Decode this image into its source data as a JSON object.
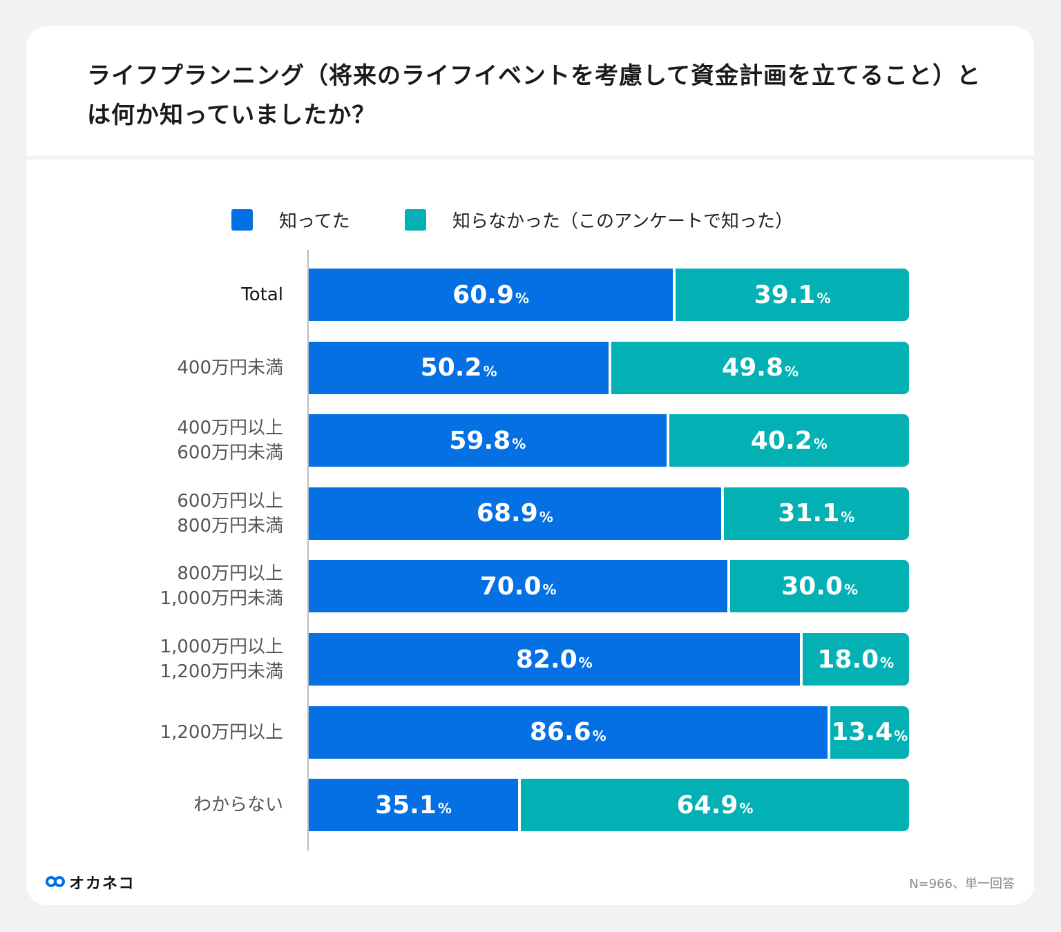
{
  "title": "ライフプランニング（将来のライフイベントを考慮して資金計画を立てること）とは何か知っていましたか？",
  "footer": {
    "brand": "オカネコ",
    "note": "N=966、単一回答"
  },
  "chart_data": {
    "type": "bar",
    "orientation": "horizontal",
    "stacked": true,
    "percent_unit": "%",
    "xlim": [
      0,
      100
    ],
    "legend_position": "top",
    "categories": [
      "Total",
      "400万円未満",
      "400万円以上\n600万円未満",
      "600万円以上\n800万円未満",
      "800万円以上\n1,000万円未満",
      "1,000万円以上\n1,200万円未満",
      "1,200万円以上",
      "わからない"
    ],
    "series": [
      {
        "name": "知ってた",
        "color": "#0470e3",
        "values": [
          60.9,
          50.2,
          59.8,
          68.9,
          70.0,
          82.0,
          86.6,
          35.1
        ]
      },
      {
        "name": "知らなかった（このアンケートで知った）",
        "color": "#03b1b4",
        "values": [
          39.1,
          49.8,
          40.2,
          31.1,
          30.0,
          18.0,
          13.4,
          64.9
        ]
      }
    ]
  }
}
